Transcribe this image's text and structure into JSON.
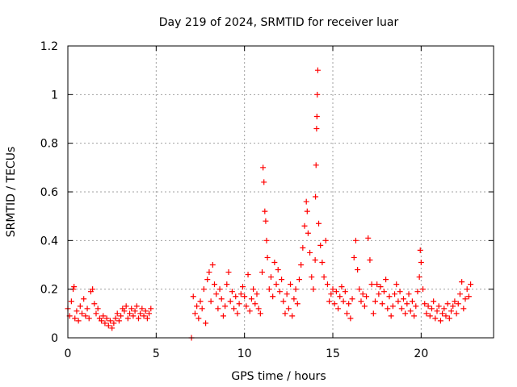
{
  "chart_data": {
    "type": "scatter",
    "title": "Day 219 of 2024, SRMTID for receiver luar",
    "xlabel": "GPS time / hours",
    "ylabel": "SRMTID / TECUs",
    "xlim": [
      0,
      24.1
    ],
    "ylim": [
      0,
      1.2
    ],
    "xticks": [
      0,
      5,
      10,
      15,
      20
    ],
    "xtick_labels": [
      "0",
      "5",
      "10",
      "15",
      "20"
    ],
    "yticks": [
      0,
      0.2,
      0.4,
      0.6,
      0.8,
      1,
      1.2
    ],
    "ytick_labels": [
      "0",
      "0.2",
      "0.4",
      "0.6",
      "0.8",
      "1",
      "1.2"
    ],
    "grid": true,
    "marker": "+",
    "color": "#ff0000",
    "series": [
      {
        "name": "SRMTID",
        "points": [
          [
            0.0,
            0.12
          ],
          [
            0.1,
            0.09
          ],
          [
            0.2,
            0.15
          ],
          [
            0.3,
            0.2
          ],
          [
            0.35,
            0.21
          ],
          [
            0.4,
            0.08
          ],
          [
            0.5,
            0.11
          ],
          [
            0.6,
            0.07
          ],
          [
            0.7,
            0.13
          ],
          [
            0.8,
            0.1
          ],
          [
            0.9,
            0.16
          ],
          [
            1.0,
            0.09
          ],
          [
            1.1,
            0.12
          ],
          [
            1.2,
            0.08
          ],
          [
            1.3,
            0.19
          ],
          [
            1.4,
            0.2
          ],
          [
            1.5,
            0.14
          ],
          [
            1.6,
            0.1
          ],
          [
            1.7,
            0.12
          ],
          [
            1.8,
            0.08
          ],
          [
            1.9,
            0.07
          ],
          [
            2.0,
            0.09
          ],
          [
            2.1,
            0.06
          ],
          [
            2.2,
            0.08
          ],
          [
            2.3,
            0.05
          ],
          [
            2.4,
            0.07
          ],
          [
            2.5,
            0.04
          ],
          [
            2.6,
            0.06
          ],
          [
            2.7,
            0.08
          ],
          [
            2.8,
            0.1
          ],
          [
            2.9,
            0.07
          ],
          [
            3.0,
            0.09
          ],
          [
            3.1,
            0.12
          ],
          [
            3.2,
            0.11
          ],
          [
            3.3,
            0.13
          ],
          [
            3.4,
            0.08
          ],
          [
            3.5,
            0.1
          ],
          [
            3.6,
            0.12
          ],
          [
            3.7,
            0.09
          ],
          [
            3.8,
            0.11
          ],
          [
            3.9,
            0.13
          ],
          [
            4.0,
            0.08
          ],
          [
            4.1,
            0.1
          ],
          [
            4.2,
            0.12
          ],
          [
            4.3,
            0.09
          ],
          [
            4.4,
            0.11
          ],
          [
            4.5,
            0.08
          ],
          [
            4.6,
            0.1
          ],
          [
            4.7,
            0.12
          ],
          [
            7.0,
            0.0
          ],
          [
            7.1,
            0.17
          ],
          [
            7.2,
            0.1
          ],
          [
            7.3,
            0.13
          ],
          [
            7.4,
            0.08
          ],
          [
            7.5,
            0.15
          ],
          [
            7.6,
            0.12
          ],
          [
            7.7,
            0.2
          ],
          [
            7.8,
            0.06
          ],
          [
            7.9,
            0.24
          ],
          [
            8.0,
            0.27
          ],
          [
            8.1,
            0.15
          ],
          [
            8.2,
            0.3
          ],
          [
            8.3,
            0.22
          ],
          [
            8.4,
            0.18
          ],
          [
            8.5,
            0.12
          ],
          [
            8.6,
            0.2
          ],
          [
            8.7,
            0.16
          ],
          [
            8.8,
            0.09
          ],
          [
            8.9,
            0.13
          ],
          [
            9.0,
            0.22
          ],
          [
            9.1,
            0.27
          ],
          [
            9.2,
            0.15
          ],
          [
            9.3,
            0.19
          ],
          [
            9.4,
            0.12
          ],
          [
            9.5,
            0.17
          ],
          [
            9.6,
            0.1
          ],
          [
            9.7,
            0.14
          ],
          [
            9.8,
            0.18
          ],
          [
            9.9,
            0.21
          ],
          [
            10.0,
            0.17
          ],
          [
            10.1,
            0.13
          ],
          [
            10.2,
            0.26
          ],
          [
            10.3,
            0.11
          ],
          [
            10.4,
            0.16
          ],
          [
            10.5,
            0.2
          ],
          [
            10.6,
            0.14
          ],
          [
            10.7,
            0.18
          ],
          [
            10.8,
            0.12
          ],
          [
            10.9,
            0.1
          ],
          [
            11.0,
            0.27
          ],
          [
            11.05,
            0.7
          ],
          [
            11.1,
            0.64
          ],
          [
            11.15,
            0.52
          ],
          [
            11.2,
            0.48
          ],
          [
            11.25,
            0.4
          ],
          [
            11.3,
            0.33
          ],
          [
            11.4,
            0.2
          ],
          [
            11.5,
            0.25
          ],
          [
            11.6,
            0.17
          ],
          [
            11.7,
            0.31
          ],
          [
            11.8,
            0.22
          ],
          [
            11.9,
            0.28
          ],
          [
            12.0,
            0.19
          ],
          [
            12.1,
            0.24
          ],
          [
            12.2,
            0.15
          ],
          [
            12.3,
            0.1
          ],
          [
            12.4,
            0.18
          ],
          [
            12.5,
            0.12
          ],
          [
            12.6,
            0.22
          ],
          [
            12.7,
            0.09
          ],
          [
            12.8,
            0.16
          ],
          [
            12.9,
            0.2
          ],
          [
            13.0,
            0.14
          ],
          [
            13.1,
            0.24
          ],
          [
            13.2,
            0.3
          ],
          [
            13.3,
            0.37
          ],
          [
            13.4,
            0.46
          ],
          [
            13.5,
            0.56
          ],
          [
            13.55,
            0.52
          ],
          [
            13.6,
            0.43
          ],
          [
            13.7,
            0.35
          ],
          [
            13.8,
            0.25
          ],
          [
            13.9,
            0.2
          ],
          [
            14.0,
            0.32
          ],
          [
            14.02,
            0.58
          ],
          [
            14.05,
            0.71
          ],
          [
            14.08,
            0.86
          ],
          [
            14.1,
            0.91
          ],
          [
            14.12,
            1.0
          ],
          [
            14.15,
            1.1
          ],
          [
            14.2,
            0.47
          ],
          [
            14.3,
            0.38
          ],
          [
            14.4,
            0.31
          ],
          [
            14.5,
            0.25
          ],
          [
            14.6,
            0.4
          ],
          [
            14.7,
            0.22
          ],
          [
            14.8,
            0.15
          ],
          [
            14.9,
            0.18
          ],
          [
            15.0,
            0.2
          ],
          [
            15.1,
            0.14
          ],
          [
            15.2,
            0.19
          ],
          [
            15.3,
            0.12
          ],
          [
            15.4,
            0.17
          ],
          [
            15.5,
            0.21
          ],
          [
            15.6,
            0.15
          ],
          [
            15.7,
            0.19
          ],
          [
            15.8,
            0.1
          ],
          [
            15.9,
            0.14
          ],
          [
            16.0,
            0.08
          ],
          [
            16.1,
            0.16
          ],
          [
            16.2,
            0.33
          ],
          [
            16.3,
            0.4
          ],
          [
            16.4,
            0.28
          ],
          [
            16.5,
            0.2
          ],
          [
            16.6,
            0.15
          ],
          [
            16.7,
            0.18
          ],
          [
            16.8,
            0.13
          ],
          [
            16.9,
            0.17
          ],
          [
            17.0,
            0.41
          ],
          [
            17.1,
            0.32
          ],
          [
            17.2,
            0.22
          ],
          [
            17.3,
            0.1
          ],
          [
            17.4,
            0.15
          ],
          [
            17.5,
            0.22
          ],
          [
            17.6,
            0.18
          ],
          [
            17.7,
            0.21
          ],
          [
            17.8,
            0.14
          ],
          [
            17.9,
            0.19
          ],
          [
            18.0,
            0.24
          ],
          [
            18.1,
            0.12
          ],
          [
            18.2,
            0.17
          ],
          [
            18.3,
            0.09
          ],
          [
            18.4,
            0.13
          ],
          [
            18.5,
            0.18
          ],
          [
            18.6,
            0.22
          ],
          [
            18.7,
            0.15
          ],
          [
            18.8,
            0.19
          ],
          [
            18.9,
            0.12
          ],
          [
            19.0,
            0.16
          ],
          [
            19.1,
            0.1
          ],
          [
            19.2,
            0.14
          ],
          [
            19.3,
            0.18
          ],
          [
            19.4,
            0.11
          ],
          [
            19.5,
            0.15
          ],
          [
            19.6,
            0.09
          ],
          [
            19.7,
            0.13
          ],
          [
            19.8,
            0.19
          ],
          [
            19.9,
            0.25
          ],
          [
            19.95,
            0.36
          ],
          [
            20.0,
            0.31
          ],
          [
            20.1,
            0.2
          ],
          [
            20.2,
            0.14
          ],
          [
            20.3,
            0.1
          ],
          [
            20.4,
            0.13
          ],
          [
            20.5,
            0.09
          ],
          [
            20.6,
            0.12
          ],
          [
            20.7,
            0.15
          ],
          [
            20.8,
            0.08
          ],
          [
            20.9,
            0.11
          ],
          [
            21.0,
            0.13
          ],
          [
            21.1,
            0.07
          ],
          [
            21.2,
            0.1
          ],
          [
            21.3,
            0.12
          ],
          [
            21.4,
            0.09
          ],
          [
            21.5,
            0.14
          ],
          [
            21.6,
            0.08
          ],
          [
            21.7,
            0.11
          ],
          [
            21.8,
            0.13
          ],
          [
            21.9,
            0.15
          ],
          [
            22.0,
            0.1
          ],
          [
            22.1,
            0.14
          ],
          [
            22.2,
            0.18
          ],
          [
            22.3,
            0.23
          ],
          [
            22.4,
            0.12
          ],
          [
            22.5,
            0.16
          ],
          [
            22.6,
            0.2
          ],
          [
            22.7,
            0.17
          ],
          [
            22.8,
            0.22
          ]
        ]
      }
    ]
  }
}
